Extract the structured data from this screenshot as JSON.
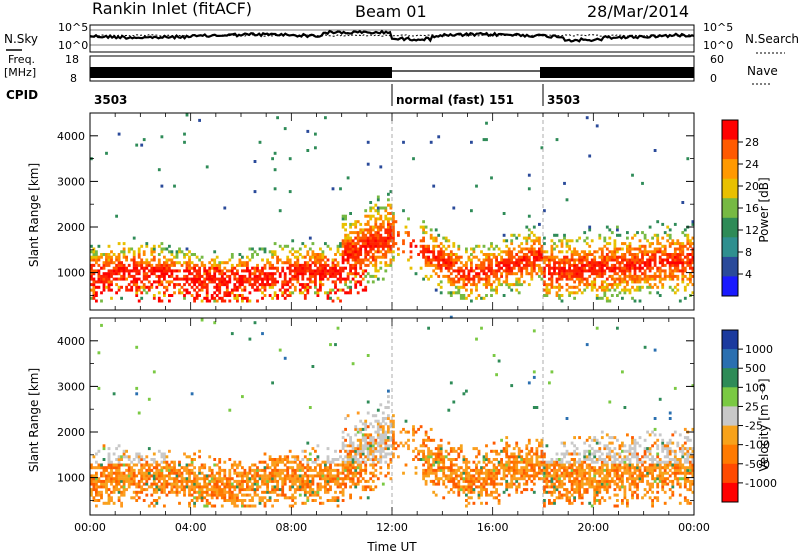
{
  "header": {
    "station": "Rankin Inlet (fitACF)",
    "beam": "Beam 01",
    "date": "28/Mar/2014"
  },
  "status_panels": {
    "nsky_label": "N.Sky",
    "nsky_ticks": [
      "10^5",
      "10^0"
    ],
    "nsearch_label": "N.Search",
    "nsearch_ticks": [
      "10^5",
      "10^0"
    ],
    "freq_label_1": "Freq.",
    "freq_label_2": "[MHz]",
    "freq_ticks": [
      "18",
      "8"
    ],
    "nave_label": "Nave",
    "nave_ticks": [
      "60",
      "0"
    ],
    "cpid_label": "CPID",
    "cpid_segments": [
      {
        "label": "3503",
        "start_hour": 0,
        "end_hour": 12
      },
      {
        "label": "normal (fast) 151",
        "start_hour": 12,
        "end_hour": 18
      },
      {
        "label": "3503",
        "start_hour": 18,
        "end_hour": 24
      }
    ]
  },
  "chart_data": [
    {
      "type": "heatmap",
      "name": "power-panel",
      "xlabel": "",
      "ylabel": "Slant Range [km]",
      "xlim": [
        0,
        24
      ],
      "ylim": [
        180,
        4500
      ],
      "y_ticks": [
        "1000",
        "2000",
        "3000",
        "4000"
      ],
      "colorbar_label": "Power [dB]",
      "colorbar_ticks": [
        "28",
        "24",
        "20",
        "16",
        "12",
        "8",
        "4"
      ],
      "colorbar_colors": [
        "#ff0000",
        "#ff5a00",
        "#ff9900",
        "#e8c000",
        "#76b943",
        "#2e8b57",
        "#2f8f8f",
        "#2a4a9a",
        "#1a1aff"
      ]
    },
    {
      "type": "heatmap",
      "name": "velocity-panel",
      "xlabel": "Time UT",
      "ylabel": "Slant Range [km]",
      "xlim": [
        0,
        24
      ],
      "ylim": [
        180,
        4500
      ],
      "x_ticks": [
        "00:00",
        "04:00",
        "08:00",
        "12:00",
        "16:00",
        "20:00",
        "00:00"
      ],
      "y_ticks": [
        "1000",
        "2000",
        "3000",
        "4000"
      ],
      "colorbar_label": "Velocity [m s⁻¹]",
      "colorbar_ticks": [
        "1000",
        "500",
        "100",
        "25",
        "-25",
        "-100",
        "-500",
        "-1000"
      ],
      "colorbar_colors": [
        "#1b3a9e",
        "#2a6fb0",
        "#2e8b57",
        "#7ac943",
        "#c8c8c8",
        "#f7a21b",
        "#ff7a00",
        "#ff4a00",
        "#ff0000"
      ]
    }
  ]
}
